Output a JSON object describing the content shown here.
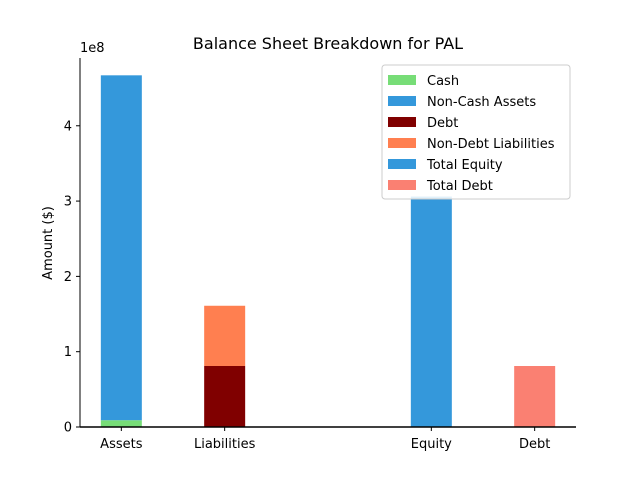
{
  "chart_data": {
    "type": "bar",
    "title": "Balance Sheet Breakdown for PAL",
    "xlabel": "",
    "ylabel": "Amount ($)",
    "y_offset_label": "1e8",
    "ylim": [
      0,
      490000000
    ],
    "y_ticks": [
      0,
      100000000,
      200000000,
      300000000,
      400000000
    ],
    "y_tick_labels": [
      "0",
      "1",
      "2",
      "3",
      "4"
    ],
    "categories": [
      "Assets",
      "Liabilities",
      "Equity",
      "Debt"
    ],
    "category_x": [
      0,
      1,
      3,
      4
    ],
    "legend_position": "top-right",
    "series": [
      {
        "name": "Cash",
        "color": "#77dd77",
        "category": "Assets",
        "base": 0,
        "value": 9000000
      },
      {
        "name": "Non-Cash Assets",
        "color": "#3498db",
        "category": "Assets",
        "base": 9000000,
        "value": 458000000
      },
      {
        "name": "Debt",
        "color": "#800000",
        "category": "Liabilities",
        "base": 0,
        "value": 81000000
      },
      {
        "name": "Non-Debt Liabilities",
        "color": "#ff7f50",
        "category": "Liabilities",
        "base": 81000000,
        "value": 80000000
      },
      {
        "name": "Total Equity",
        "color": "#3498db",
        "category": "Equity",
        "base": 0,
        "value": 306000000
      },
      {
        "name": "Total Debt",
        "color": "#fa8072",
        "category": "Debt",
        "base": 0,
        "value": 81000000
      }
    ]
  }
}
